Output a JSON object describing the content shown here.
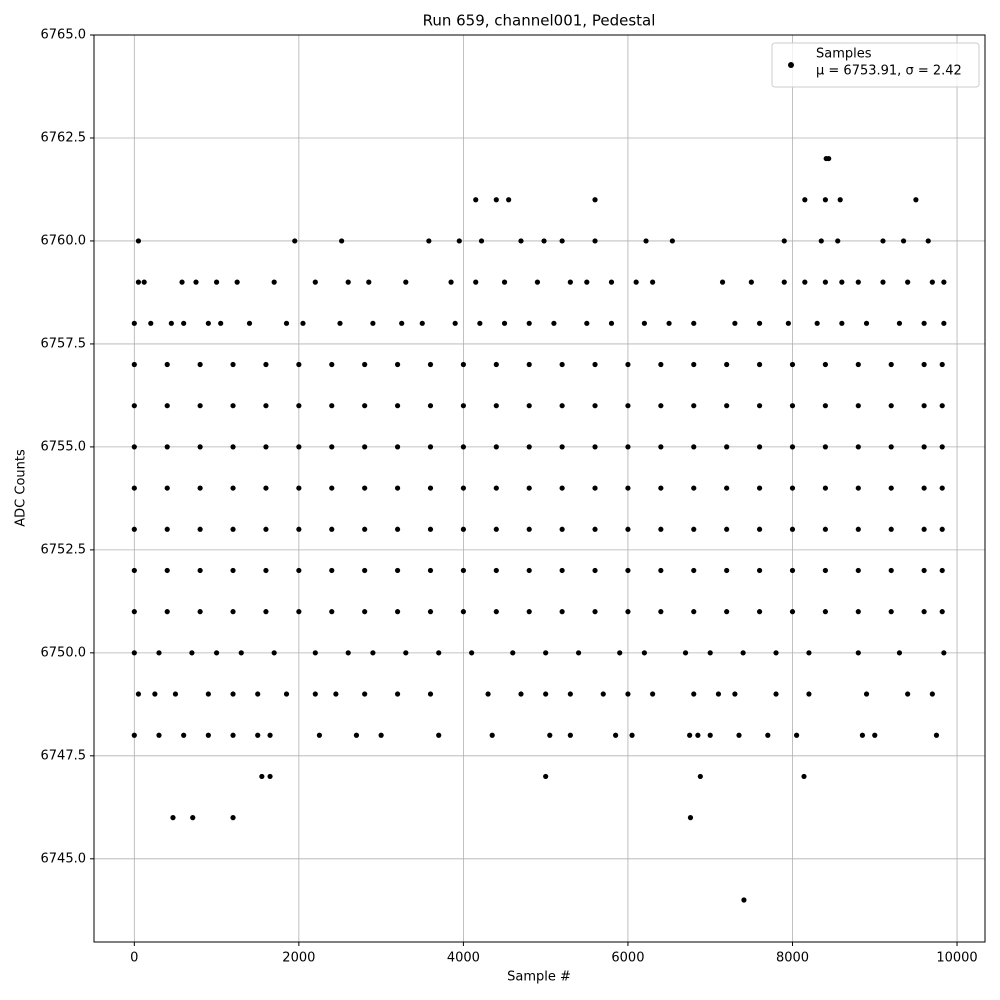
{
  "chart_data": {
    "type": "scatter",
    "title": "Run 659, channel001, Pedestal",
    "x_label": "Sample #",
    "y_label": "ADC Counts",
    "annotation": "μ = 6753.91, σ = 2.42",
    "legend": "upper right",
    "grid": true,
    "xlim": [
      -490,
      10340
    ],
    "ylim": [
      6742.98,
      6765
    ],
    "xticks": [
      0,
      2000,
      4000,
      6000,
      8000,
      10000
    ],
    "yticks": [
      {
        "value": 6745,
        "label": "6745.0"
      },
      {
        "value": 6747.5,
        "label": "6747.5"
      },
      {
        "value": 6750,
        "label": "6750.0"
      },
      {
        "value": 6752.5,
        "label": "6752.5"
      },
      {
        "value": 6755,
        "label": "6755.0"
      },
      {
        "value": 6757.5,
        "label": "6757.5"
      },
      {
        "value": 6760,
        "label": "6760.0"
      },
      {
        "value": 6762.5,
        "label": "6762.5"
      },
      {
        "value": 6765,
        "label": "6765.0"
      }
    ],
    "x": [
      0,
      400,
      800,
      1200,
      1600,
      2000,
      2400,
      2800,
      3200,
      3600,
      4000,
      4400,
      4800,
      5200,
      5600,
      6000,
      6400,
      6800,
      7200,
      7600,
      8000,
      8400,
      8800,
      9200,
      9600,
      9820,
      0,
      400,
      800,
      1200,
      1600,
      2000,
      2400,
      2800,
      3200,
      3600,
      4000,
      4400,
      4800,
      5200,
      5600,
      6000,
      6400,
      6800,
      7200,
      7600,
      8000,
      8400,
      8800,
      9200,
      9600,
      9820,
      0,
      400,
      800,
      1200,
      1600,
      2000,
      2400,
      2800,
      3200,
      3600,
      4000,
      4400,
      4800,
      5200,
      5600,
      6000,
      6400,
      6800,
      7200,
      7600,
      8000,
      8400,
      8800,
      9200,
      9600,
      9820,
      0,
      400,
      800,
      1200,
      1600,
      2000,
      2400,
      2800,
      3200,
      3600,
      4000,
      4400,
      4800,
      5200,
      5600,
      6000,
      6400,
      6800,
      7200,
      7600,
      8000,
      8400,
      8800,
      9200,
      9600,
      9820,
      0,
      400,
      800,
      1200,
      1600,
      2000,
      2400,
      2800,
      3200,
      3600,
      4000,
      4400,
      4800,
      5200,
      5600,
      6000,
      6400,
      6800,
      7200,
      7600,
      8000,
      8400,
      8800,
      9200,
      9600,
      9820,
      0,
      400,
      800,
      1200,
      1600,
      2000,
      2400,
      2800,
      3200,
      3600,
      4000,
      4400,
      4800,
      5200,
      5600,
      6000,
      6400,
      6800,
      7200,
      7600,
      8000,
      8400,
      8800,
      9200,
      9600,
      9820,
      0,
      400,
      800,
      1200,
      1600,
      2000,
      2400,
      2800,
      3200,
      3600,
      4000,
      4400,
      4800,
      5200,
      5600,
      6000,
      6400,
      6800,
      7200,
      7600,
      8000,
      8400,
      8800,
      9200,
      9600,
      9820,
      0,
      300,
      700,
      1000,
      1300,
      1700,
      2200,
      2600,
      2900,
      3300,
      3700,
      4100,
      4600,
      5000,
      5400,
      5900,
      6200,
      6700,
      7000,
      7400,
      7800,
      8200,
      8800,
      9300,
      9840,
      50,
      250,
      500,
      900,
      1200,
      1500,
      1850,
      2200,
      2450,
      2800,
      3200,
      3600,
      4300,
      4700,
      5000,
      5300,
      5700,
      6000,
      6300,
      6800,
      7100,
      7300,
      7800,
      8200,
      8900,
      9400,
      9700,
      0,
      300,
      600,
      900,
      1200,
      1500,
      1650,
      2250,
      2700,
      3000,
      3700,
      4350,
      5050,
      5300,
      5850,
      6050,
      6750,
      6850,
      7000,
      7350,
      7700,
      8050,
      8850,
      9000,
      9750,
      1550,
      1650,
      5000,
      6880,
      8140,
      470,
      710,
      1200,
      6760,
      7410,
      0,
      200,
      450,
      600,
      900,
      1050,
      1400,
      1850,
      2050,
      2500,
      2900,
      3250,
      3500,
      3900,
      4200,
      4500,
      4800,
      5100,
      5500,
      5800,
      6200,
      6500,
      6800,
      7300,
      7600,
      7950,
      8300,
      8600,
      8900,
      9300,
      9600,
      9840,
      50,
      120,
      580,
      750,
      1000,
      1250,
      1700,
      2200,
      2600,
      2850,
      3300,
      3850,
      4150,
      4500,
      4900,
      5300,
      5500,
      5800,
      6100,
      6300,
      7150,
      7500,
      7900,
      8150,
      8400,
      8600,
      8800,
      9100,
      9400,
      9700,
      9840,
      50,
      1950,
      2520,
      3580,
      3950,
      4220,
      4700,
      4980,
      5200,
      5600,
      6220,
      6540,
      7900,
      8350,
      8550,
      9100,
      9350,
      9650,
      4150,
      4400,
      4550,
      5600,
      8150,
      8400,
      8580,
      9500,
      8410,
      8440
    ],
    "series": [
      {
        "name": "Samples",
        "color": "#000000",
        "values": [
          6757,
          6757,
          6757,
          6757,
          6757,
          6757,
          6757,
          6757,
          6757,
          6757,
          6757,
          6757,
          6757,
          6757,
          6757,
          6757,
          6757,
          6757,
          6757,
          6757,
          6757,
          6757,
          6757,
          6757,
          6757,
          6757,
          6756,
          6756,
          6756,
          6756,
          6756,
          6756,
          6756,
          6756,
          6756,
          6756,
          6756,
          6756,
          6756,
          6756,
          6756,
          6756,
          6756,
          6756,
          6756,
          6756,
          6756,
          6756,
          6756,
          6756,
          6756,
          6756,
          6755,
          6755,
          6755,
          6755,
          6755,
          6755,
          6755,
          6755,
          6755,
          6755,
          6755,
          6755,
          6755,
          6755,
          6755,
          6755,
          6755,
          6755,
          6755,
          6755,
          6755,
          6755,
          6755,
          6755,
          6755,
          6755,
          6754,
          6754,
          6754,
          6754,
          6754,
          6754,
          6754,
          6754,
          6754,
          6754,
          6754,
          6754,
          6754,
          6754,
          6754,
          6754,
          6754,
          6754,
          6754,
          6754,
          6754,
          6754,
          6754,
          6754,
          6754,
          6754,
          6753,
          6753,
          6753,
          6753,
          6753,
          6753,
          6753,
          6753,
          6753,
          6753,
          6753,
          6753,
          6753,
          6753,
          6753,
          6753,
          6753,
          6753,
          6753,
          6753,
          6753,
          6753,
          6753,
          6753,
          6753,
          6753,
          6752,
          6752,
          6752,
          6752,
          6752,
          6752,
          6752,
          6752,
          6752,
          6752,
          6752,
          6752,
          6752,
          6752,
          6752,
          6752,
          6752,
          6752,
          6752,
          6752,
          6752,
          6752,
          6752,
          6752,
          6752,
          6752,
          6751,
          6751,
          6751,
          6751,
          6751,
          6751,
          6751,
          6751,
          6751,
          6751,
          6751,
          6751,
          6751,
          6751,
          6751,
          6751,
          6751,
          6751,
          6751,
          6751,
          6751,
          6751,
          6751,
          6751,
          6751,
          6751,
          6750,
          6750,
          6750,
          6750,
          6750,
          6750,
          6750,
          6750,
          6750,
          6750,
          6750,
          6750,
          6750,
          6750,
          6750,
          6750,
          6750,
          6750,
          6750,
          6750,
          6750,
          6750,
          6750,
          6750,
          6750,
          6749,
          6749,
          6749,
          6749,
          6749,
          6749,
          6749,
          6749,
          6749,
          6749,
          6749,
          6749,
          6749,
          6749,
          6749,
          6749,
          6749,
          6749,
          6749,
          6749,
          6749,
          6749,
          6749,
          6749,
          6749,
          6749,
          6749,
          6748,
          6748,
          6748,
          6748,
          6748,
          6748,
          6748,
          6748,
          6748,
          6748,
          6748,
          6748,
          6748,
          6748,
          6748,
          6748,
          6748,
          6748,
          6748,
          6748,
          6748,
          6748,
          6748,
          6748,
          6748,
          6747,
          6747,
          6747,
          6747,
          6747,
          6746,
          6746,
          6746,
          6746,
          6744,
          6758,
          6758,
          6758,
          6758,
          6758,
          6758,
          6758,
          6758,
          6758,
          6758,
          6758,
          6758,
          6758,
          6758,
          6758,
          6758,
          6758,
          6758,
          6758,
          6758,
          6758,
          6758,
          6758,
          6758,
          6758,
          6758,
          6758,
          6758,
          6758,
          6758,
          6758,
          6758,
          6759,
          6759,
          6759,
          6759,
          6759,
          6759,
          6759,
          6759,
          6759,
          6759,
          6759,
          6759,
          6759,
          6759,
          6759,
          6759,
          6759,
          6759,
          6759,
          6759,
          6759,
          6759,
          6759,
          6759,
          6759,
          6759,
          6759,
          6759,
          6759,
          6759,
          6759,
          6760,
          6760,
          6760,
          6760,
          6760,
          6760,
          6760,
          6760,
          6760,
          6760,
          6760,
          6760,
          6760,
          6760,
          6760,
          6760,
          6760,
          6760,
          6761,
          6761,
          6761,
          6761,
          6761,
          6761,
          6761,
          6761,
          6762,
          6762
        ]
      }
    ]
  }
}
